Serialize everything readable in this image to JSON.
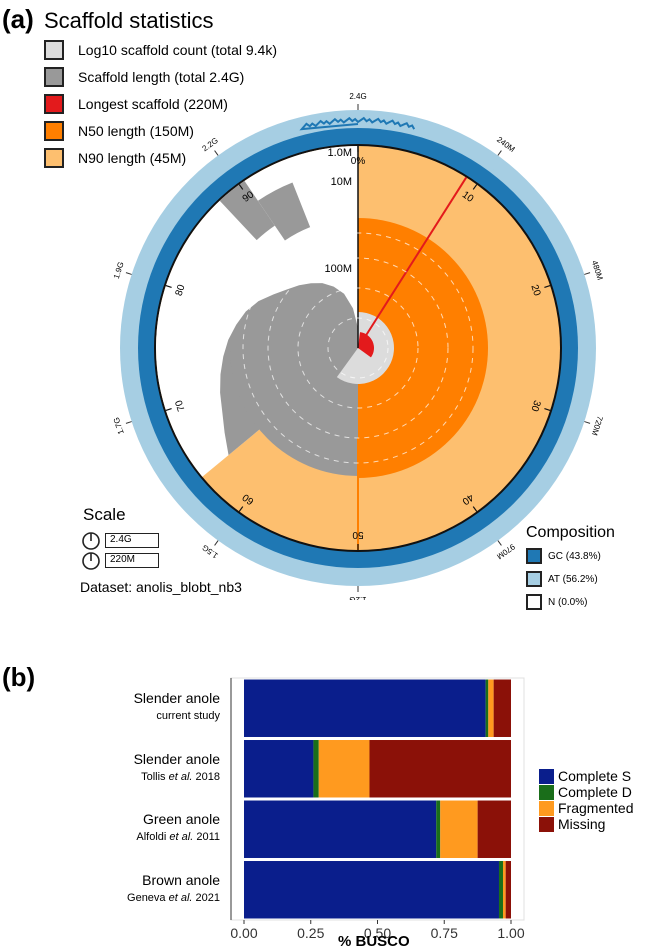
{
  "panel_a": {
    "label": "(a)",
    "title": "Scaffold statistics",
    "legend": [
      {
        "label": "Log10 scaffold count (total 9.4k)",
        "color": "#dcdcdc"
      },
      {
        "label": "Scaffold length (total 2.4G)",
        "color": "#999999"
      },
      {
        "label": "Longest scaffold (220M)",
        "color": "#e31a1c"
      },
      {
        "label": "N50 length (150M)",
        "color": "#ff7f00"
      },
      {
        "label": "N90 length (45M)",
        "color": "#fdbf6f"
      }
    ],
    "scale": {
      "title": "Scale",
      "values": [
        "2.4G",
        "220M"
      ]
    },
    "dataset": "Dataset: anolis_blobt_nb3",
    "composition": {
      "title": "Composition",
      "items": [
        {
          "label": "GC (43.8%)",
          "color": "#1f78b4"
        },
        {
          "label": "AT (56.2%)",
          "color": "#a6cee3"
        },
        {
          "label": "N (0.0%)",
          "color": "#ffffff"
        }
      ]
    },
    "outer_ticks": [
      "2.4G",
      "240M",
      "480M",
      "720M",
      "970M",
      "1.2G",
      "1.5G",
      "1.7G",
      "1.9G",
      "2.2G"
    ],
    "inner_ticks": [
      "0%",
      "10",
      "20",
      "30",
      "40",
      "50",
      "60",
      "70",
      "80",
      "90"
    ],
    "radial_ticks": [
      "1.0M",
      "10M",
      "100M"
    ]
  },
  "chart_data": {
    "type": "bar",
    "title": "",
    "xlabel": "% BUSCO",
    "ylabel": "",
    "xlim": [
      0,
      1
    ],
    "xticks": [
      "0.00",
      "0.25",
      "0.50",
      "0.75",
      "1.00"
    ],
    "categories": [
      {
        "name": "Slender anole",
        "sub_pre": "current study",
        "sub_it": "",
        "sub_post": ""
      },
      {
        "name": "Slender anole",
        "sub_pre": "Tollis ",
        "sub_it": "et al.",
        "sub_post": " 2018"
      },
      {
        "name": "Green anole",
        "sub_pre": "Alfoldi ",
        "sub_it": "et al.",
        "sub_post": " 2011"
      },
      {
        "name": "Brown anole",
        "sub_pre": "Geneva ",
        "sub_it": "et al.",
        "sub_post": " 2021"
      }
    ],
    "series": [
      {
        "name": "Complete S",
        "color": "#0a1e8c",
        "values": [
          0.905,
          0.26,
          0.72,
          0.955
        ]
      },
      {
        "name": "Complete D",
        "color": "#1a6e1a",
        "values": [
          0.01,
          0.02,
          0.015,
          0.015
        ]
      },
      {
        "name": "Fragmented",
        "color": "#ff9a1f",
        "values": [
          0.02,
          0.19,
          0.14,
          0.01
        ]
      },
      {
        "name": "Missing",
        "color": "#8b1108",
        "values": [
          0.065,
          0.53,
          0.125,
          0.02
        ]
      }
    ]
  }
}
